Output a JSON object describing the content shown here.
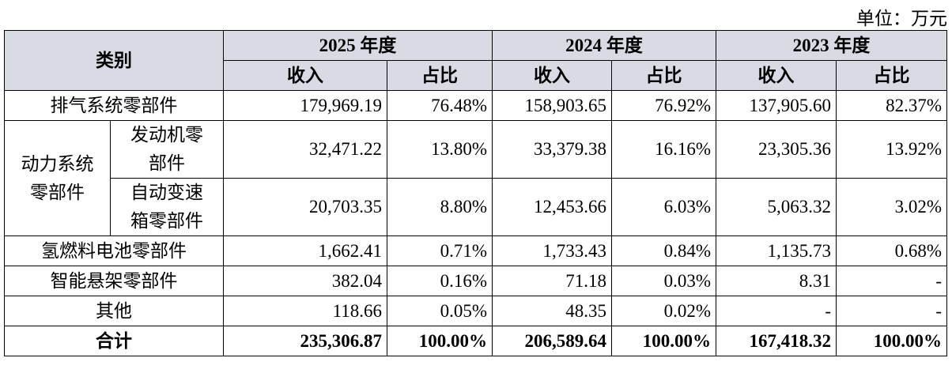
{
  "unit": "单位：万元",
  "header": {
    "category": "类别",
    "years": [
      "2025 年度",
      "2024 年度",
      "2023 年度"
    ],
    "revenue": "收入",
    "share": "占比"
  },
  "rows": [
    {
      "label": "排气系统零部件",
      "cells": [
        "179,969.19",
        "76.48%",
        "158,903.65",
        "76.92%",
        "137,905.60",
        "82.37%"
      ]
    },
    {
      "group": "动力系统零部件",
      "label": "发动机零部件",
      "cells": [
        "32,471.22",
        "13.80%",
        "33,379.38",
        "16.16%",
        "23,305.36",
        "13.92%"
      ]
    },
    {
      "label": "自动变速箱零部件",
      "cells": [
        "20,703.35",
        "8.80%",
        "12,453.66",
        "6.03%",
        "5,063.32",
        "3.02%"
      ]
    },
    {
      "label": "氢燃料电池零部件",
      "cells": [
        "1,662.41",
        "0.71%",
        "1,733.43",
        "0.84%",
        "1,135.73",
        "0.68%"
      ]
    },
    {
      "label": "智能悬架零部件",
      "cells": [
        "382.04",
        "0.16%",
        "71.18",
        "0.03%",
        "8.31",
        "-"
      ]
    },
    {
      "label": "其他",
      "cells": [
        "118.66",
        "0.05%",
        "48.35",
        "0.02%",
        "-",
        "-"
      ]
    },
    {
      "label": "合计",
      "cells": [
        "235,306.87",
        "100.00%",
        "206,589.64",
        "100.00%",
        "167,418.32",
        "100.00%"
      ]
    }
  ]
}
